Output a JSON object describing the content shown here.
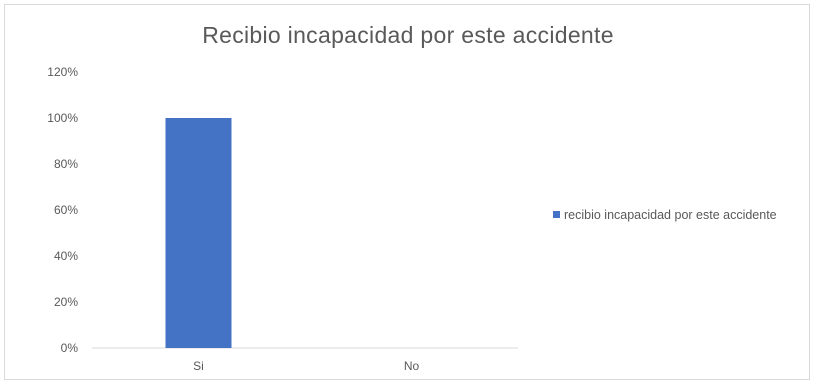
{
  "chart_data": {
    "type": "bar",
    "title": "Recibio incapacidad por este accidente",
    "categories": [
      "Si",
      "No"
    ],
    "series": [
      {
        "name": "recibio incapacidad por este accidente",
        "values": [
          100,
          0
        ]
      }
    ],
    "ylim": [
      0,
      120
    ],
    "yticks": [
      "0%",
      "20%",
      "40%",
      "60%",
      "80%",
      "100%",
      "120%"
    ],
    "xlabel": "",
    "ylabel": "",
    "grid": false,
    "legend": "right",
    "colors": {
      "bar": "#4472c4",
      "text": "#595959",
      "axis": "#d9d9d9"
    }
  }
}
